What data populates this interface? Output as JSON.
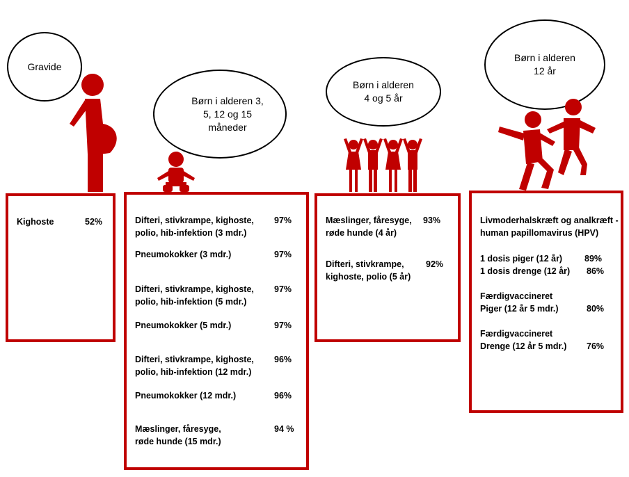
{
  "colors": {
    "accent": "#c00000",
    "figure": "#c00000"
  },
  "groups": [
    {
      "label": "Gravide",
      "icon": "pregnant-woman-icon",
      "items": [
        {
          "text": "Kighoste",
          "pct": "52%"
        }
      ]
    },
    {
      "label": "Børn i alderen    3,\n5, 12 og 15\nmåneder",
      "icon": "baby-icon",
      "items": [
        {
          "text": "Difteri, stivkrampe, kighoste,\npolio, hib-infektion (3 mdr.)",
          "pct": "97%"
        },
        {
          "text": "Pneumokokker (3 mdr.)",
          "pct": "97%"
        },
        {
          "text": "Difteri, stivkrampe, kighoste,\npolio, hib-infektion  (5 mdr.)",
          "pct": "97%"
        },
        {
          "text": "Pneumokokker (5 mdr.)",
          "pct": "97%"
        },
        {
          "text": "Difteri, stivkrampe, kighoste,\npolio, hib-infektion (12 mdr.)",
          "pct": "96%"
        },
        {
          "text": "Pneumokokker (12 mdr.)",
          "pct": "96%"
        },
        {
          "text": "Mæslinger, fåresyge,\nrøde hunde (15 mdr.)",
          "pct": "94 %"
        }
      ]
    },
    {
      "label": "Børn i alderen\n4 og 5 år",
      "icon": "children-group-icon",
      "items": [
        {
          "text": "Mæslinger, fåresyge,\nrøde hunde (4 år)",
          "pct": "93%"
        },
        {
          "text": "Difteri, stivkrampe,\nkighoste, polio (5 år)",
          "pct": "92%"
        }
      ]
    },
    {
      "label": "Børn i alderen\n12 år",
      "icon": "playing-children-icon",
      "header": "Livmoderhalskræft og analkræft -\nhuman papillomavirus (HPV)",
      "items": [
        {
          "text": "1 dosis piger (12 år)",
          "pct": "89%"
        },
        {
          "text": "1 dosis drenge (12 år)",
          "pct": "86%"
        },
        {
          "text": "Færdigvaccineret\nPiger (12 år 5 mdr.)",
          "pct": "80%"
        },
        {
          "text": "Færdigvaccineret\nDrenge (12 år 5 mdr.)",
          "pct": "76%"
        }
      ]
    }
  ]
}
